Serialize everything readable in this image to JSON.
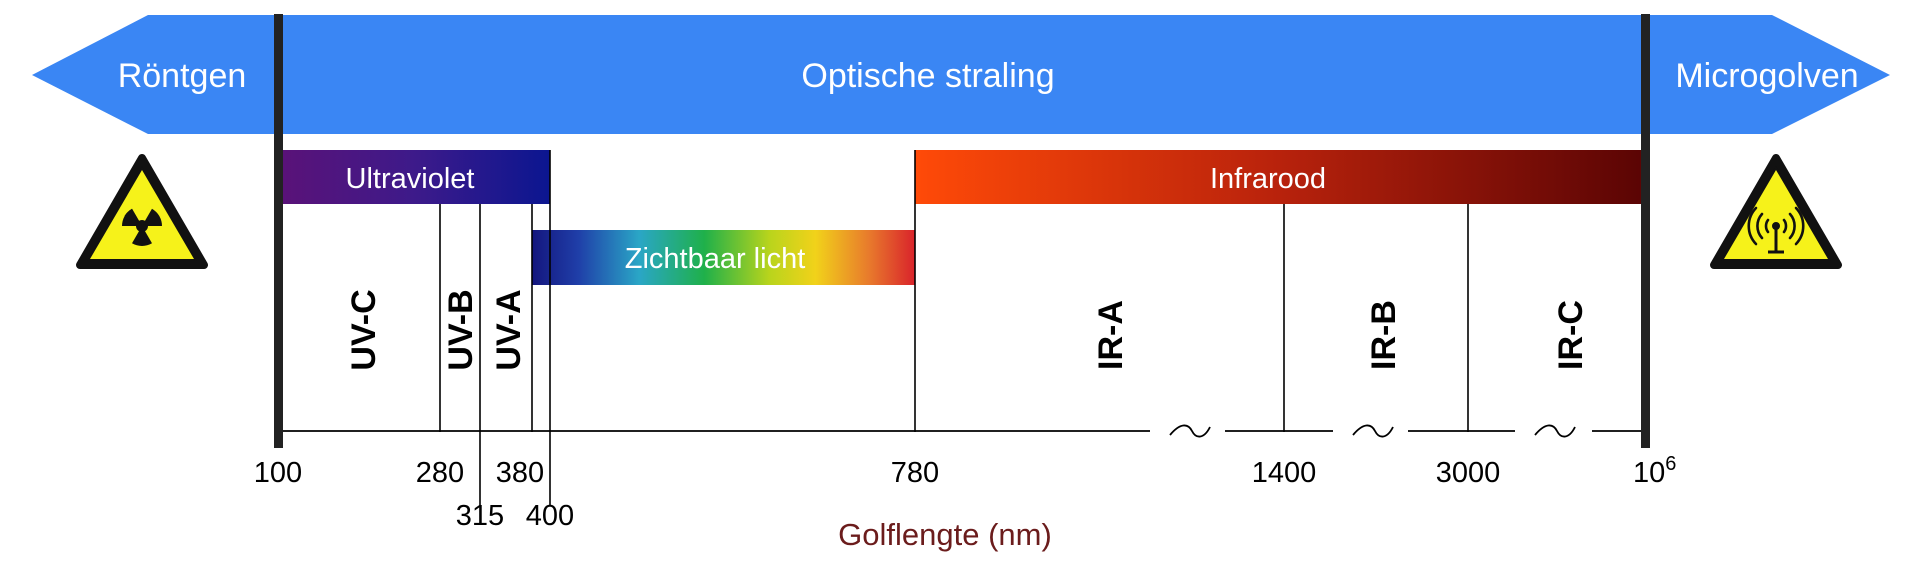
{
  "banner": {
    "left_label": "Röntgen",
    "center_label": "Optische straling",
    "right_label": "Microgolven",
    "color": "#3a86f4"
  },
  "bands": {
    "ultraviolet": "Ultraviolet",
    "visible": "Zichtbaar licht",
    "infrared": "Infrarood"
  },
  "subbands": {
    "uvc": "UV-C",
    "uvb": "UV-B",
    "uva": "UV-A",
    "ira": "IR-A",
    "irb": "IR-B",
    "irc": "IR-C"
  },
  "ticks": {
    "t100": "100",
    "t280": "280",
    "t315": "315",
    "t380": "380",
    "t400": "400",
    "t780": "780",
    "t1400": "1400",
    "t3000": "3000",
    "t1e6_base": "10",
    "t1e6_exp": "6"
  },
  "axis_title": "Golflengte (nm)",
  "icons": {
    "left": "radiation-warning-icon",
    "right": "non-ionizing-radiation-warning-icon"
  }
}
